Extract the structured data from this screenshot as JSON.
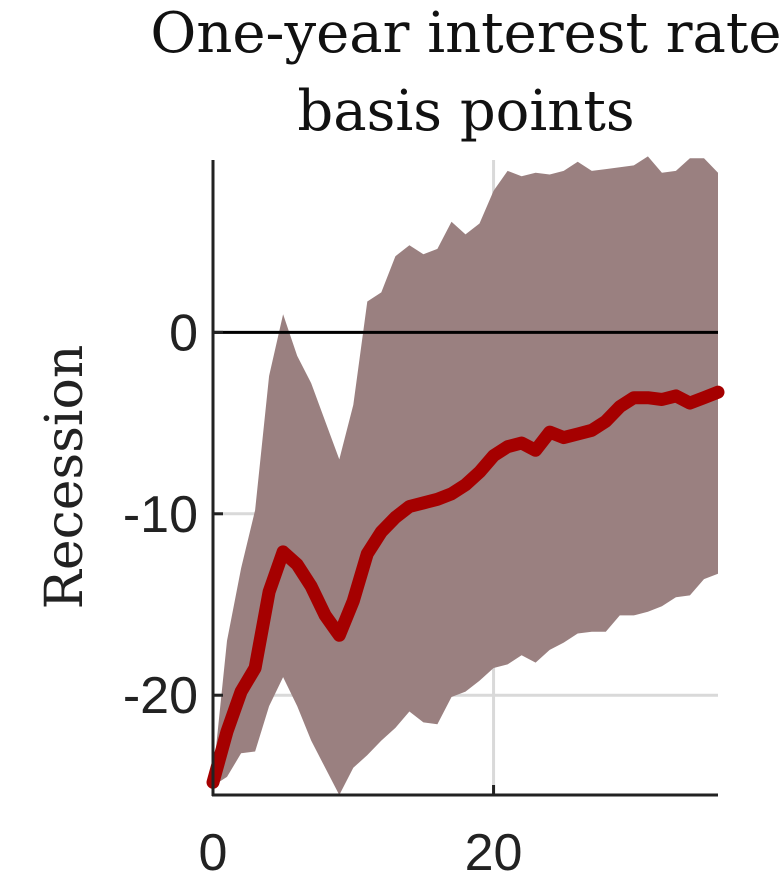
{
  "chart_data": {
    "type": "area",
    "title": [
      "One-year interest rate",
      "basis points"
    ],
    "ylabel": "Recession",
    "xlabel": "",
    "xlim": [
      0,
      36
    ],
    "ylim": [
      -25.5,
      9.5
    ],
    "xticks": [
      0,
      20
    ],
    "xtick_labels": [
      "0",
      "20"
    ],
    "yticks": [
      0,
      -10,
      -20
    ],
    "ytick_labels": [
      "0",
      "-10",
      "-20"
    ],
    "grid": true,
    "zero_line": true,
    "colors": {
      "line": "#a50000",
      "band": "#9a8080",
      "grid": "#d9d9d9",
      "axis": "#222222",
      "zero": "#000000"
    },
    "x": [
      0,
      1,
      2,
      3,
      4,
      5,
      6,
      7,
      8,
      9,
      10,
      11,
      12,
      13,
      14,
      15,
      16,
      17,
      18,
      19,
      20,
      21,
      22,
      23,
      24,
      25,
      26,
      27,
      28,
      29,
      30,
      31,
      32,
      33,
      34,
      35,
      36
    ],
    "series": [
      {
        "role": "median",
        "values": [
          -24.8,
          -22,
          -19.8,
          -18.5,
          -14.3,
          -12.1,
          -12.8,
          -14,
          -15.6,
          -16.7,
          -14.8,
          -12.2,
          -11,
          -10.2,
          -9.6,
          -9.4,
          -9.2,
          -8.9,
          -8.4,
          -7.7,
          -6.8,
          -6.3,
          -6.1,
          -6.5,
          -5.5,
          -5.8,
          -5.6,
          -5.4,
          -4.9,
          -4.1,
          -3.6,
          -3.6,
          -3.7,
          -3.5,
          -3.9,
          -3.6,
          -3.3
        ]
      },
      {
        "role": "upper_band",
        "values": [
          -24.5,
          -17,
          -13,
          -9.8,
          -2.4,
          1.0,
          -1.3,
          -2.8,
          -4.9,
          -7.0,
          -4.0,
          1.7,
          2.2,
          4.2,
          4.8,
          4.3,
          4.6,
          6.1,
          5.4,
          6.0,
          7.8,
          8.9,
          8.6,
          8.8,
          8.7,
          8.9,
          9.4,
          8.9,
          9.0,
          9.1,
          9.2,
          9.7,
          8.8,
          8.9,
          9.6,
          9.6,
          8.8
        ]
      },
      {
        "role": "lower_band",
        "values": [
          -25,
          -24.5,
          -23.2,
          -23.1,
          -20.6,
          -19,
          -20.6,
          -22.5,
          -24,
          -25.5,
          -24,
          -23.3,
          -22.5,
          -21.8,
          -20.9,
          -21.5,
          -21.6,
          -20.1,
          -19.8,
          -19.2,
          -18.5,
          -18.3,
          -17.8,
          -18.2,
          -17.5,
          -17.1,
          -16.6,
          -16.5,
          -16.5,
          -15.6,
          -15.6,
          -15.4,
          -15.1,
          -14.6,
          -14.5,
          -13.6,
          -13.3
        ]
      }
    ]
  }
}
